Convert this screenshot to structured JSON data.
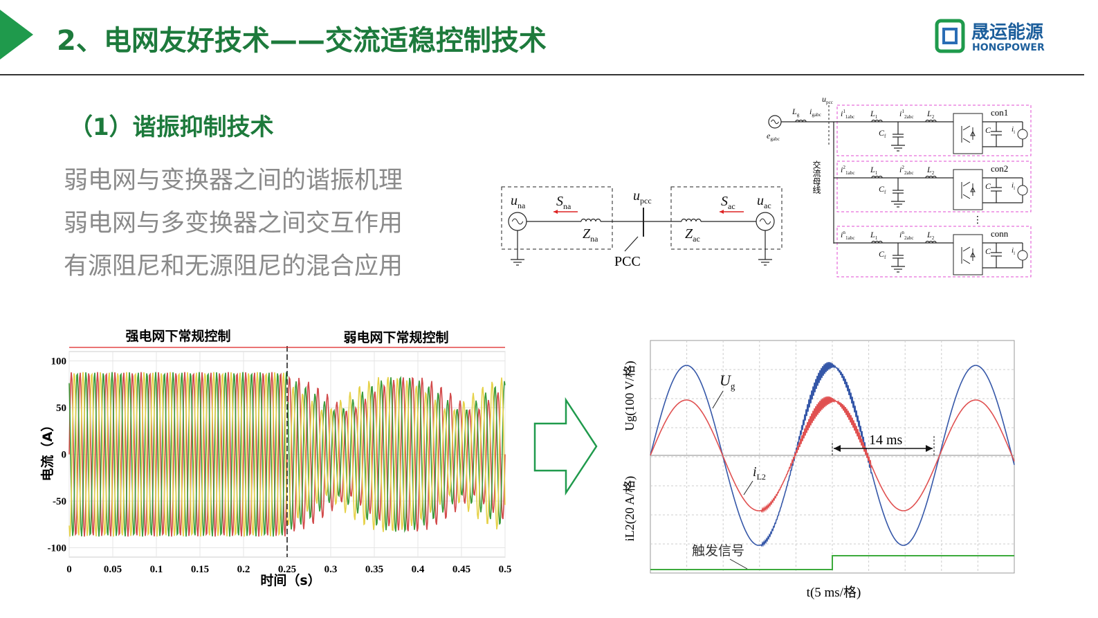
{
  "header": {
    "title": "2、电网友好技术——交流适稳控制技术",
    "logo_cn": "晟运能源",
    "logo_en": "HONGPOWER"
  },
  "section": {
    "title": "（1）谐振抑制技术",
    "items": [
      "弱电网与变换器之间的谐振机理",
      "弱电网与多变换器之间交互作用",
      "有源阻尼和无源阻尼的混合应用"
    ]
  },
  "circuit": {
    "u_na": {
      "main": "u",
      "sub": "na"
    },
    "S_na": {
      "main": "S",
      "sub": "na"
    },
    "Z_na": {
      "main": "Z",
      "sub": "na"
    },
    "u_pcc": {
      "main": "u",
      "sub": "pcc"
    },
    "pcc": "PCC",
    "S_ac": {
      "main": "S",
      "sub": "ac"
    },
    "u_ac": {
      "main": "u",
      "sub": "ac"
    },
    "Z_ac": {
      "main": "Z",
      "sub": "ac"
    }
  },
  "converter_diagram": {
    "e": {
      "main": "e",
      "sub": "gabc"
    },
    "Lg": {
      "main": "L",
      "sub": "g"
    },
    "ig": {
      "main": "i",
      "sub": "gabc"
    },
    "upcc": {
      "main": "u",
      "sub": "pcc"
    },
    "bus": "交流母线",
    "ellipsis": "⋮",
    "units": [
      {
        "name": "con1",
        "i1": {
          "main": "i",
          "sup": "1",
          "sub": "1abc"
        },
        "L1": {
          "main": "L",
          "sub": "1"
        },
        "i2": {
          "main": "i",
          "sup": "1",
          "sub": "2abc"
        },
        "L2": {
          "main": "L",
          "sub": "2"
        },
        "Cf": {
          "main": "C",
          "sub": "f"
        },
        "C": {
          "main": "C"
        },
        "il": {
          "main": "i",
          "sub": "l"
        }
      },
      {
        "name": "con2",
        "i1": {
          "main": "i",
          "sup": "2",
          "sub": "1abc"
        },
        "L1": {
          "main": "L",
          "sub": "1"
        },
        "i2": {
          "main": "i",
          "sup": "2",
          "sub": "2abc"
        },
        "L2": {
          "main": "L",
          "sub": "2"
        },
        "Cf": {
          "main": "C",
          "sub": "f"
        },
        "C": {
          "main": "C"
        },
        "il": {
          "main": "i",
          "sub": "l"
        }
      },
      {
        "name": "conn",
        "i1": {
          "main": "i",
          "sup": "n",
          "sub": "1abc"
        },
        "L1": {
          "main": "L",
          "sub": "1"
        },
        "i2": {
          "main": "i",
          "sup": "n",
          "sub": "2abc"
        },
        "L2": {
          "main": "L",
          "sub": "2"
        },
        "Cf": {
          "main": "C",
          "sub": "f"
        },
        "C": {
          "main": "C"
        },
        "il": {
          "main": "i",
          "sub": "l"
        }
      }
    ]
  },
  "chart_data": {
    "type": "line",
    "title_left": "强电网下常规控制",
    "title_right": "弱电网下常规控制",
    "xlabel": "时间（s）",
    "ylabel": "电流（A）",
    "xlim": [
      0,
      0.5
    ],
    "xticks": [
      0,
      0.05,
      0.1,
      0.15,
      0.2,
      0.25,
      0.3,
      0.35,
      0.4,
      0.45,
      0.5
    ],
    "ylim": [
      -110,
      110
    ],
    "yticks": [
      100,
      50,
      0,
      -50,
      -100
    ]
  },
  "scope": {
    "ylabel_top": "Ug(100 V/格)",
    "ylabel_bottom": "iL2(20 A/格)",
    "xlabel": "t(5 ms/格)",
    "ug": {
      "main": "U",
      "sub": "g"
    },
    "il2": {
      "main": "i",
      "sub": "L2"
    },
    "interval": "14 ms",
    "trigger": "触发信号"
  }
}
